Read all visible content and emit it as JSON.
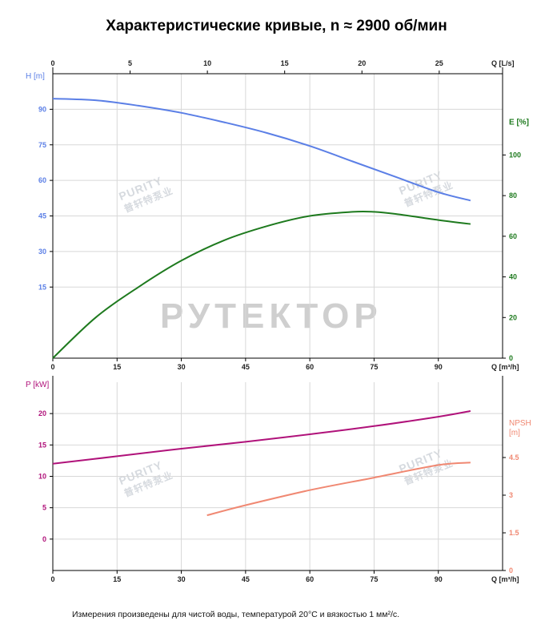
{
  "title": "Характеристические кривые, n ≈ 2900 об/мин",
  "footnote": "Измерения произведены для чистой воды, температурой 20°C и вязкостью 1 мм²/с.",
  "watermarks": {
    "brand": "РУТЕКТОР",
    "logo_text": "PURITY",
    "logo_sub": "普轩特泵业"
  },
  "colors": {
    "head": "#5b7fe6",
    "efficiency": "#1e7a1e",
    "power": "#b0127a",
    "npsh": "#f08872",
    "axis": "#000000",
    "grid": "#d8d8d8"
  },
  "chart_data": [
    {
      "type": "line",
      "panel": "upper",
      "x_top": {
        "label": "Q [L/s]",
        "ticks": [
          "0",
          "5",
          "10",
          "15",
          "20",
          "25"
        ],
        "range": [
          0,
          29.1
        ]
      },
      "x_bottom": {
        "label": "Q [m³/h]",
        "ticks": [
          "0",
          "15",
          "30",
          "45",
          "60",
          "75",
          "90"
        ],
        "range": [
          0,
          105
        ]
      },
      "y_left": {
        "label": "H [m]",
        "ticks": [
          "15",
          "30",
          "45",
          "60",
          "75",
          "90"
        ],
        "range": [
          -15,
          105
        ]
      },
      "y_right": {
        "label": "E [%]",
        "ticks": [
          "0",
          "20",
          "40",
          "60",
          "80",
          "100"
        ],
        "range": [
          0,
          140
        ]
      },
      "grid": true,
      "series": [
        {
          "name": "H",
          "axis": "left",
          "x": [
            0,
            10,
            20,
            30,
            40,
            50,
            60,
            70,
            80,
            90,
            97.5
          ],
          "y": [
            94.5,
            93.8,
            91.5,
            88.5,
            84.5,
            80,
            74.5,
            68,
            61.5,
            55,
            51.5
          ]
        },
        {
          "name": "E",
          "axis": "right",
          "x": [
            0,
            10,
            20,
            30,
            40,
            50,
            60,
            70,
            75,
            80,
            90,
            97.5
          ],
          "y": [
            0,
            20,
            35,
            48,
            58,
            65,
            70,
            72,
            72,
            71,
            68,
            66
          ]
        }
      ]
    },
    {
      "type": "line",
      "panel": "lower",
      "x_bottom": {
        "label": "Q [m³/h]",
        "ticks": [
          "0",
          "15",
          "30",
          "45",
          "60",
          "75",
          "90"
        ],
        "range": [
          0,
          105
        ]
      },
      "y_left": {
        "label": "P [kW]",
        "ticks": [
          "0",
          "5",
          "10",
          "15",
          "20"
        ],
        "range": [
          -5,
          25
        ]
      },
      "y_right": {
        "label": "NPSH [m]",
        "ticks": [
          "0",
          "1.5",
          "3",
          "4.5"
        ],
        "range": [
          0,
          7.5
        ]
      },
      "grid": true,
      "series": [
        {
          "name": "P",
          "axis": "left",
          "x": [
            0,
            15,
            30,
            45,
            60,
            75,
            90,
            97.5
          ],
          "y": [
            12,
            13.2,
            14.4,
            15.5,
            16.7,
            18,
            19.5,
            20.4
          ]
        },
        {
          "name": "NPSH",
          "axis": "right",
          "x": [
            36,
            45,
            60,
            75,
            90,
            97.5
          ],
          "y": [
            2.2,
            2.6,
            3.2,
            3.7,
            4.2,
            4.3
          ]
        }
      ]
    }
  ]
}
